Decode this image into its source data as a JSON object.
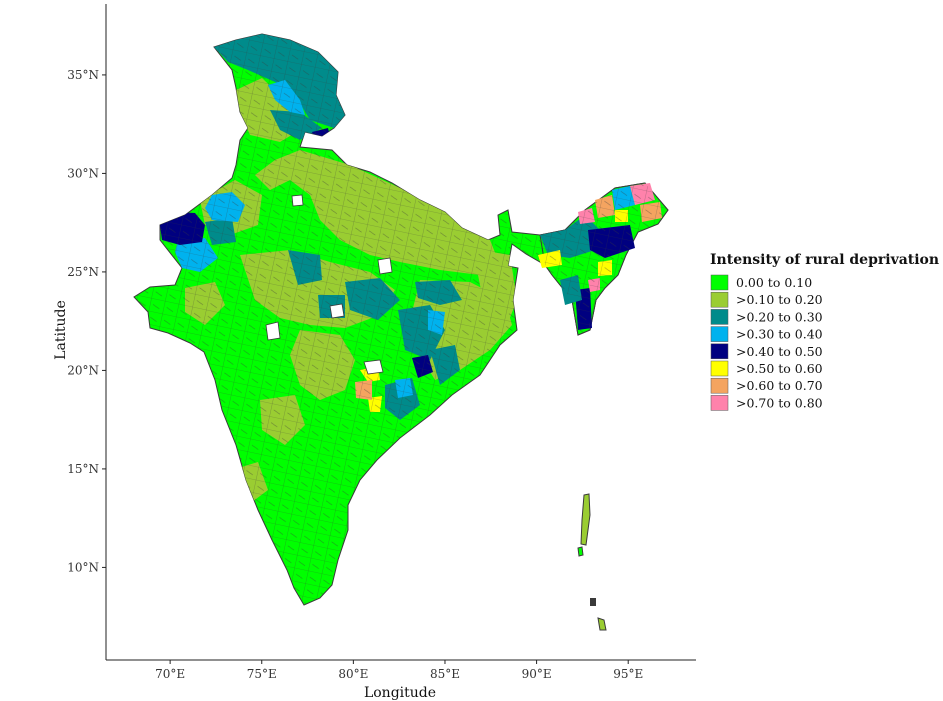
{
  "chart_data": {
    "type": "choropleth-map",
    "xlabel": "Longitude",
    "ylabel": "Latitude",
    "x_ticks": [
      "70°E",
      "75°E",
      "80°E",
      "85°E",
      "90°E",
      "95°E"
    ],
    "x_tick_values": [
      70,
      75,
      80,
      85,
      90,
      95
    ],
    "y_ticks": [
      "10°N",
      "15°N",
      "20°N",
      "25°N",
      "30°N",
      "35°N"
    ],
    "y_tick_values": [
      10,
      15,
      20,
      25,
      30,
      35
    ],
    "xlim": [
      66.5,
      98.7
    ],
    "ylim": [
      5.3,
      38.6
    ],
    "legend": {
      "title": "Intensity of rural deprivation",
      "placement": "right",
      "items": [
        {
          "label": "0.00 to 0.10",
          "color": "#00FF00"
        },
        {
          "label": ">0.10 to 0.20",
          "color": "#9ACD32"
        },
        {
          "label": ">0.20 to 0.30",
          "color": "#008B8B"
        },
        {
          "label": ">0.30 to 0.40",
          "color": "#00B2EE"
        },
        {
          "label": ">0.40 to 0.50",
          "color": "#000080"
        },
        {
          "label": ">0.50 to 0.60",
          "color": "#FFFF00"
        },
        {
          "label": ">0.60 to 0.70",
          "color": "#F4A460"
        },
        {
          "label": ">0.70 to 0.80",
          "color": "#FF82AB"
        }
      ]
    },
    "border_color": "#3a3a3a"
  }
}
